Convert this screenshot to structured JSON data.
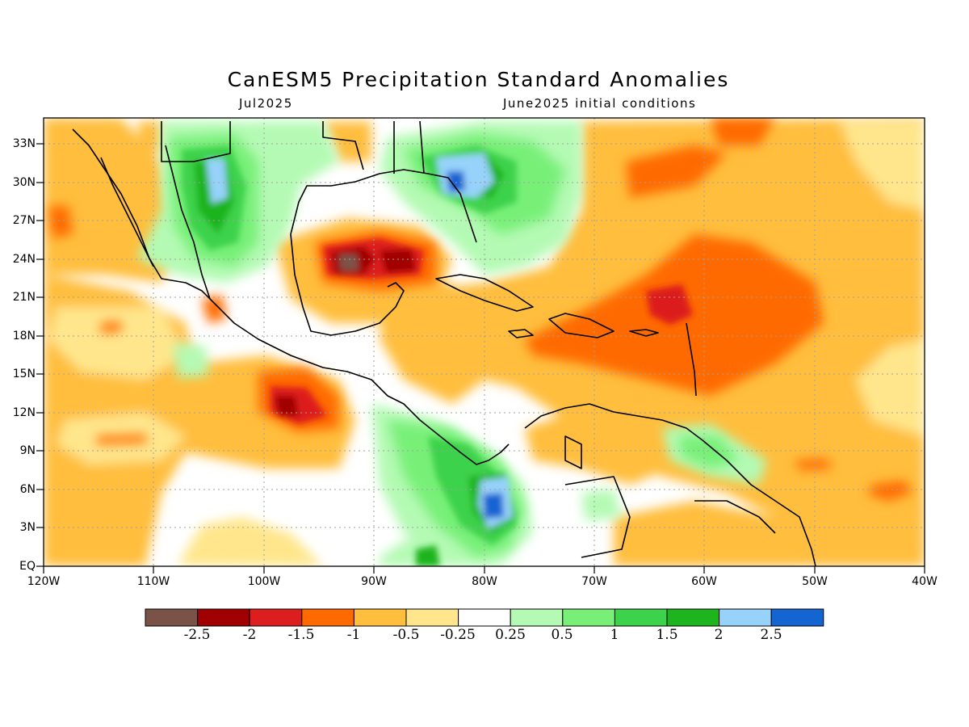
{
  "title": "CanESM5 Precipitation Standard Anomalies",
  "subtitle_left": "Jul2025",
  "subtitle_right": "June2025 initial conditions",
  "lat_labels": [
    "33N",
    "30N",
    "27N",
    "24N",
    "21N",
    "18N",
    "15N",
    "12N",
    "9N",
    "6N",
    "3N",
    "EQ"
  ],
  "lon_labels": [
    "120W",
    "110W",
    "100W",
    "90W",
    "80W",
    "70W",
    "60W",
    "50W",
    "40W"
  ],
  "colorbar": {
    "colors": [
      "#7b5248",
      "#a00000",
      "#dc1e1e",
      "#ff6a00",
      "#ffbe3c",
      "#ffe68c",
      "#ffffff",
      "#b4fab4",
      "#78f078",
      "#3cd24b",
      "#1eb41e",
      "#96d2fa",
      "#1464d2"
    ],
    "labels": [
      "-2.5",
      "-2",
      "-1.5",
      "-1",
      "-0.5",
      "-0.25",
      "0.25",
      "0.5",
      "1",
      "1.5",
      "2",
      "2.5"
    ]
  },
  "map": {
    "lon_range": [
      -120,
      -40
    ],
    "lat_range": [
      0,
      35
    ],
    "grid": true,
    "anomaly_regions": [
      {
        "level": "-2.5",
        "color": "#7b5248",
        "lon": -92.0,
        "lat": 23.8
      },
      {
        "level": "-2",
        "color": "#a00000",
        "lon": -89.5,
        "lat": 23.8
      },
      {
        "level": "-1.5",
        "color": "#dc1e1e",
        "lon": -97.0,
        "lat": 12.0
      },
      {
        "level": "-1.5",
        "color": "#dc1e1e",
        "lon": -62.0,
        "lat": 20.5
      },
      {
        "level": "2.5",
        "color": "#1464d2",
        "lon": -82.5,
        "lat": 30.0
      },
      {
        "level": "2.5",
        "color": "#1464d2",
        "lon": -79.0,
        "lat": 4.5
      },
      {
        "level": "2",
        "color": "#96d2fa",
        "lon": -104.5,
        "lat": 30.0
      }
    ]
  }
}
